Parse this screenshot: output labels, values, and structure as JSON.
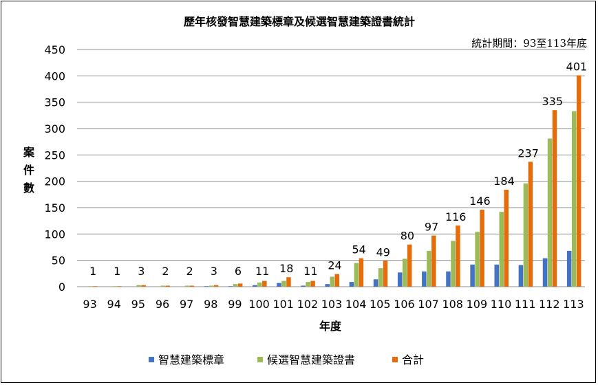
{
  "chart_data": {
    "type": "bar",
    "title": "歷年核發智慧建築標章及候選智慧建築證書統計",
    "subtitle": "統計期間：93至113年底",
    "xlabel": "年度",
    "ylabel": "案件數",
    "ylim": [
      0,
      450
    ],
    "yticks": [
      0,
      50,
      100,
      150,
      200,
      250,
      300,
      350,
      400,
      450
    ],
    "grid": true,
    "legend_position": "bottom",
    "categories": [
      "93",
      "94",
      "95",
      "96",
      "97",
      "98",
      "99",
      "100",
      "101",
      "102",
      "103",
      "104",
      "105",
      "106",
      "107",
      "108",
      "109",
      "110",
      "111",
      "112",
      "113"
    ],
    "series": [
      {
        "name": "智慧建築標章",
        "color": "#4472C4",
        "values": [
          0,
          0,
          0,
          0,
          0,
          1,
          1,
          3,
          7,
          2,
          5,
          9,
          14,
          27,
          29,
          29,
          42,
          42,
          41,
          54,
          68
        ]
      },
      {
        "name": "候選智慧建築證書",
        "color": "#9BBB59",
        "values": [
          1,
          1,
          3,
          2,
          2,
          2,
          5,
          8,
          11,
          9,
          19,
          45,
          35,
          53,
          68,
          87,
          104,
          142,
          196,
          281,
          333
        ]
      },
      {
        "name": "合計",
        "color": "#E46C0A",
        "values": [
          1,
          1,
          3,
          2,
          2,
          3,
          6,
          11,
          18,
          11,
          24,
          54,
          49,
          80,
          97,
          116,
          146,
          184,
          237,
          335,
          401
        ]
      }
    ],
    "data_labels": [
      1,
      1,
      3,
      2,
      2,
      3,
      6,
      11,
      18,
      11,
      24,
      54,
      49,
      80,
      97,
      116,
      146,
      184,
      237,
      335,
      401
    ]
  }
}
